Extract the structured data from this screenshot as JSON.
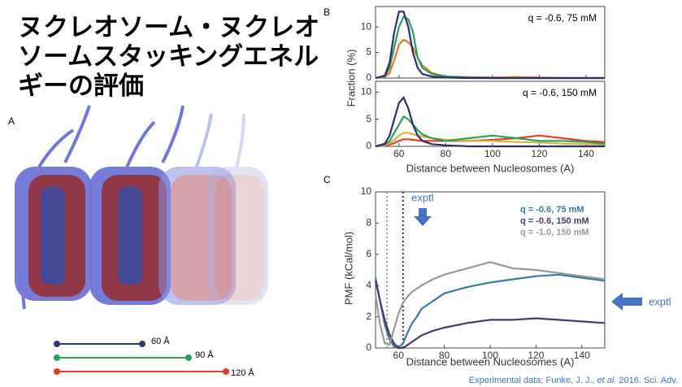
{
  "title_lines": [
    "ヌクレオソーム・ヌクレオ",
    "ソームスタッキングエネル",
    "ギーの評価"
  ],
  "panel_a": {
    "label": "A",
    "scale_bars": [
      "60 Å",
      "90 Å",
      "120 Å"
    ]
  },
  "footer": {
    "pre": "Experimental data; Funke, J. J., ",
    "italic": "et al.",
    "post": " 2016. Sci. Adv."
  },
  "chart_data": [
    {
      "type": "line",
      "label": "B",
      "xlabel": "Distance between Nucleosomes (A)",
      "ylabel": "Fraction (%)",
      "x": [
        50,
        54,
        56,
        58,
        60,
        62,
        64,
        66,
        68,
        70,
        74,
        80,
        90,
        100,
        110,
        120,
        130,
        140,
        148
      ],
      "xlim": [
        50,
        148
      ],
      "xticks": [
        60,
        80,
        100,
        120,
        140
      ],
      "subplots": [
        {
          "annotation": "q = -0.6, 75 mM",
          "ylim": [
            0,
            14
          ],
          "yticks": [
            0,
            5,
            10
          ],
          "series": [
            {
              "color": "#e8762b",
              "values": [
                0,
                0.2,
                1,
                3.5,
                6.5,
                7.5,
                7,
                6,
                4,
                2.5,
                1,
                0.3,
                0.2,
                0.1,
                0.2,
                0.1,
                0,
                0,
                0
              ]
            },
            {
              "color": "#2aa05a",
              "values": [
                0,
                0.3,
                2,
                6,
                10,
                12,
                11.5,
                9,
                4,
                2,
                0.8,
                0.3,
                0.1,
                0,
                0,
                0,
                0,
                0,
                0
              ]
            },
            {
              "color": "#2b2f6e",
              "values": [
                0,
                0.5,
                3,
                9,
                13,
                13,
                10,
                5,
                2,
                0.8,
                0.3,
                0.1,
                0,
                0,
                0,
                0,
                0,
                0,
                0
              ]
            }
          ]
        },
        {
          "annotation": "q = -0.6, 150 mM",
          "ylim": [
            0,
            12
          ],
          "yticks": [
            0,
            5,
            10
          ],
          "series": [
            {
              "color": "#e53b2b",
              "values": [
                0,
                0.1,
                0.3,
                0.6,
                1,
                1.3,
                1.3,
                1.2,
                1.1,
                1,
                1,
                1,
                1,
                1.2,
                1.5,
                2,
                1.5,
                1,
                0.8
              ]
            },
            {
              "color": "#d9b23a",
              "values": [
                0,
                0.2,
                0.6,
                1.2,
                2,
                2.5,
                2.5,
                2.2,
                2,
                1.8,
                1.5,
                1.2,
                1,
                1,
                0.8,
                0.7,
                0.5,
                0.4,
                0.3
              ]
            },
            {
              "color": "#2aa05a",
              "values": [
                0,
                0.3,
                1,
                2.5,
                4,
                5.5,
                5,
                4,
                3,
                2.2,
                1.5,
                1,
                1.5,
                2,
                1.5,
                1,
                1,
                0.8,
                0.5
              ]
            },
            {
              "color": "#2b2f6e",
              "values": [
                0,
                0.5,
                2,
                5,
                8,
                9,
                7,
                4,
                2,
                1,
                0.4,
                0.2,
                0,
                0,
                0,
                0,
                0,
                0,
                0
              ]
            }
          ]
        }
      ]
    },
    {
      "type": "line",
      "label": "C",
      "xlabel": "Distance between Nucleosomes (A)",
      "ylabel": "PMF (kCal/mol)",
      "x": [
        50,
        52,
        54,
        56,
        58,
        60,
        62,
        64,
        66,
        68,
        70,
        75,
        80,
        90,
        100,
        110,
        120,
        130,
        140,
        150
      ],
      "xlim": [
        50,
        150
      ],
      "xticks": [
        60,
        80,
        100,
        120,
        140
      ],
      "ylim": [
        0,
        10
      ],
      "yticks": [
        0,
        2,
        4,
        6,
        8,
        10
      ],
      "vlines": [
        {
          "x": 55,
          "color": "#999999"
        },
        {
          "x": 62,
          "color": "#3b2f5e"
        }
      ],
      "annotations": [
        "exptl",
        "exptl"
      ],
      "series": [
        {
          "name": "q = -0.6,  75 mM",
          "color": "#3a7a9a",
          "values": [
            4.5,
            3.0,
            1.5,
            0.6,
            0.1,
            0.0,
            0.3,
            1.0,
            1.6,
            2.0,
            2.5,
            3.0,
            3.5,
            3.9,
            4.2,
            4.4,
            4.6,
            4.7,
            4.5,
            4.3
          ]
        },
        {
          "name": "q = -0.6, 150 mM",
          "color": "#4a3a6a",
          "values": [
            4.3,
            3.0,
            1.8,
            0.9,
            0.3,
            0.0,
            0.0,
            0.2,
            0.4,
            0.6,
            0.8,
            1.1,
            1.3,
            1.6,
            1.8,
            1.8,
            1.9,
            1.8,
            1.7,
            1.6
          ]
        },
        {
          "name": "q = -1.0, 150 mM",
          "color": "#999999",
          "values": [
            3.4,
            1.5,
            0.3,
            0.2,
            1.2,
            2.2,
            2.9,
            3.3,
            3.6,
            3.8,
            4.0,
            4.4,
            4.7,
            5.1,
            5.5,
            5.1,
            5.0,
            4.8,
            4.6,
            4.4
          ]
        }
      ]
    }
  ]
}
